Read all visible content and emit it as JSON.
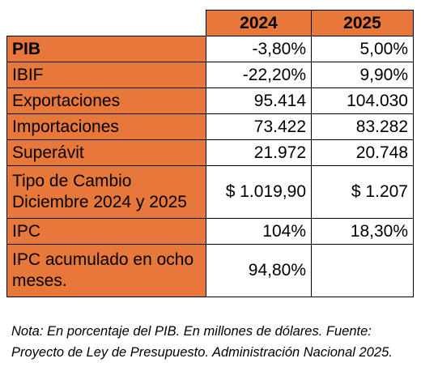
{
  "table": {
    "headers": [
      "",
      "2024",
      "2025"
    ],
    "rows": [
      {
        "label": "PIB",
        "bold": true,
        "v2024": "-3,80%",
        "v2025": "5,00%"
      },
      {
        "label": "IBIF",
        "bold": false,
        "v2024": "-22,20%",
        "v2025": "9,90%"
      },
      {
        "label": "Exportaciones",
        "bold": false,
        "v2024": "95.414",
        "v2025": "104.030"
      },
      {
        "label": "Importaciones",
        "bold": false,
        "v2024": "73.422",
        "v2025": "83.282"
      },
      {
        "label": "Superávit",
        "bold": false,
        "v2024": "21.972",
        "v2025": "20.748"
      },
      {
        "label": "Tipo de Cambio Diciembre 2024 y 2025",
        "bold": false,
        "v2024": "$ 1.019,90",
        "v2025": "$ 1.207"
      },
      {
        "label": "IPC",
        "bold": false,
        "v2024": "104%",
        "v2025": "18,30%"
      },
      {
        "label": "IPC acumulado en ocho meses.",
        "bold": false,
        "v2024": "94,80%",
        "v2025": ""
      }
    ]
  },
  "note": {
    "line1": "Nota:  En porcentaje del PIB. En millones de dólares. Fuente:",
    "line2": "Proyecto de Ley de Presupuesto. Administración Nacional 2025."
  },
  "colors": {
    "header_bg": "#e8773a",
    "label_bg": "#e8773a",
    "value_bg": "#ffffff",
    "border": "#000000"
  }
}
